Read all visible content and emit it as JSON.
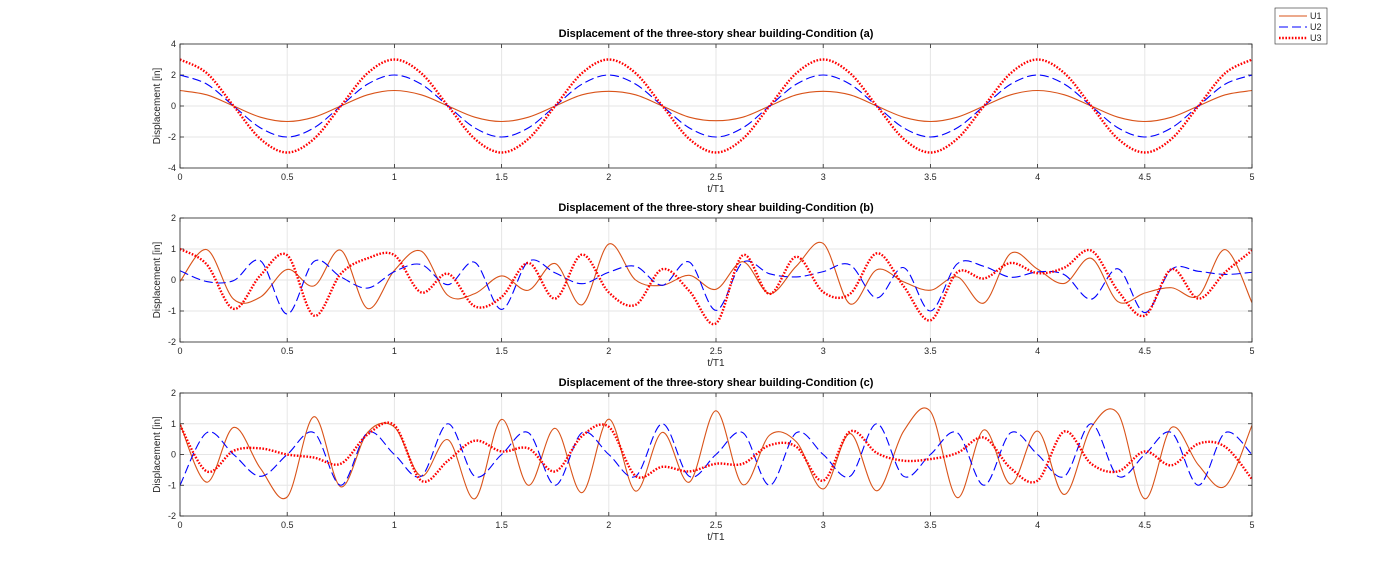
{
  "chart_data": [
    {
      "type": "line",
      "title": "Displacement of the three-story shear building-Condition (a)",
      "xlabel": "t/T1",
      "ylabel": "Displacement [in]",
      "xlim": [
        0,
        5
      ],
      "ylim": [
        -4,
        4
      ],
      "xticks": [
        "0",
        "0.5",
        "1",
        "1.5",
        "2",
        "2.5",
        "3",
        "3.5",
        "4",
        "4.5",
        "5"
      ],
      "yticks": [
        "-4",
        "-2",
        "0",
        "2",
        "4"
      ],
      "grid": true,
      "series": [
        {
          "name": "U1",
          "color": "#D95319",
          "style": "solid",
          "x": [
            0,
            0.125,
            0.25,
            0.375,
            0.5,
            0.625,
            0.75,
            0.875,
            1,
            1.125,
            1.25,
            1.375,
            1.5,
            1.625,
            1.75,
            1.875,
            2,
            2.125,
            2.25,
            2.375,
            2.5,
            2.625,
            2.75,
            2.875,
            3,
            3.125,
            3.25,
            3.375,
            3.5,
            3.625,
            3.75,
            3.875,
            4,
            4.125,
            4.25,
            4.375,
            4.5,
            4.625,
            4.75,
            4.875,
            5
          ],
          "y": [
            1,
            0.72,
            0,
            -0.72,
            -1,
            -0.72,
            0,
            0.72,
            1,
            0.72,
            0,
            -0.72,
            -1,
            -0.72,
            0,
            0.72,
            0.95,
            0.72,
            0,
            -0.72,
            -0.95,
            -0.72,
            0,
            0.72,
            0.95,
            0.72,
            0,
            -0.72,
            -1,
            -0.72,
            0,
            0.72,
            1,
            0.72,
            0,
            -0.72,
            -1,
            -0.72,
            0,
            0.72,
            1
          ]
        },
        {
          "name": "U2",
          "color": "#0000FF",
          "style": "dashed",
          "x": [
            0,
            0.125,
            0.25,
            0.375,
            0.5,
            0.625,
            0.75,
            0.875,
            1,
            1.125,
            1.25,
            1.375,
            1.5,
            1.625,
            1.75,
            1.875,
            2,
            2.125,
            2.25,
            2.375,
            2.5,
            2.625,
            2.75,
            2.875,
            3,
            3.125,
            3.25,
            3.375,
            3.5,
            3.625,
            3.75,
            3.875,
            4,
            4.125,
            4.25,
            4.375,
            4.5,
            4.625,
            4.75,
            4.875,
            5
          ],
          "y": [
            2,
            1.41,
            0,
            -1.41,
            -2,
            -1.41,
            0,
            1.41,
            2,
            1.41,
            0,
            -1.41,
            -2,
            -1.41,
            0,
            1.41,
            2,
            1.41,
            0,
            -1.41,
            -2,
            -1.41,
            0,
            1.41,
            2,
            1.41,
            0,
            -1.41,
            -2,
            -1.41,
            0,
            1.41,
            2,
            1.41,
            0,
            -1.41,
            -2,
            -1.41,
            0,
            1.41,
            2
          ]
        },
        {
          "name": "U3",
          "color": "#FF0000",
          "style": "dotted",
          "x": [
            0,
            0.125,
            0.25,
            0.375,
            0.5,
            0.625,
            0.75,
            0.875,
            1,
            1.125,
            1.25,
            1.375,
            1.5,
            1.625,
            1.75,
            1.875,
            2,
            2.125,
            2.25,
            2.375,
            2.5,
            2.625,
            2.75,
            2.875,
            3,
            3.125,
            3.25,
            3.375,
            3.5,
            3.625,
            3.75,
            3.875,
            4,
            4.125,
            4.25,
            4.375,
            4.5,
            4.625,
            4.75,
            4.875,
            5
          ],
          "y": [
            3,
            2.12,
            0,
            -2.12,
            -3,
            -2.12,
            0,
            2.12,
            3,
            2.12,
            0,
            -2.12,
            -3,
            -2.12,
            0,
            2.12,
            3,
            2.12,
            0,
            -2.12,
            -3,
            -2.12,
            0,
            2.12,
            3,
            2.12,
            0,
            -2.12,
            -3,
            -2.12,
            0,
            2.12,
            3,
            2.12,
            0,
            -2.12,
            -3,
            -2.12,
            0,
            2.12,
            3
          ]
        }
      ]
    },
    {
      "type": "line",
      "title": "Displacement of the three-story shear building-Condition (b)",
      "xlabel": "t/T1",
      "ylabel": "Displacement [in]",
      "xlim": [
        0,
        5
      ],
      "ylim": [
        -2,
        2
      ],
      "xticks": [
        "0",
        "0.5",
        "1",
        "1.5",
        "2",
        "2.5",
        "3",
        "3.5",
        "4",
        "4.5",
        "5"
      ],
      "yticks": [
        "-2",
        "-1",
        "0",
        "1",
        "2"
      ],
      "grid": true,
      "series": [
        {
          "name": "U1",
          "color": "#D95319",
          "style": "solid",
          "x": [
            0,
            0.125,
            0.25,
            0.375,
            0.5,
            0.625,
            0.75,
            0.875,
            1,
            1.125,
            1.25,
            1.375,
            1.5,
            1.625,
            1.75,
            1.875,
            2,
            2.125,
            2.25,
            2.375,
            2.5,
            2.625,
            2.75,
            2.875,
            3,
            3.125,
            3.25,
            3.375,
            3.5,
            3.625,
            3.75,
            3.875,
            4,
            4.125,
            4.25,
            4.375,
            4.5,
            4.625,
            4.75,
            4.875,
            5
          ],
          "y": [
            -0.05,
            0.98,
            -0.62,
            -0.55,
            0.34,
            -0.19,
            0.96,
            -0.92,
            0.31,
            0.93,
            -0.5,
            -0.44,
            0.13,
            -0.33,
            0.53,
            -0.8,
            1.16,
            0.0,
            -0.17,
            0.15,
            -0.3,
            0.59,
            -0.44,
            0.45,
            1.18,
            -0.77,
            0.33,
            -0.06,
            -0.33,
            0.1,
            -0.74,
            0.86,
            0.35,
            -0.11,
            0.7,
            -0.7,
            -0.42,
            -0.25,
            -0.51,
            0.98,
            -0.73
          ]
        },
        {
          "name": "U2",
          "color": "#0000FF",
          "style": "dashed",
          "x": [
            0,
            0.125,
            0.25,
            0.375,
            0.5,
            0.625,
            0.75,
            0.875,
            1,
            1.125,
            1.25,
            1.375,
            1.5,
            1.625,
            1.75,
            1.875,
            2,
            2.125,
            2.25,
            2.375,
            2.5,
            2.625,
            2.75,
            2.875,
            3,
            3.125,
            3.25,
            3.375,
            3.5,
            3.625,
            3.75,
            3.875,
            4,
            4.125,
            4.25,
            4.375,
            4.5,
            4.625,
            4.75,
            4.875,
            5
          ],
          "y": [
            0.3,
            -0.05,
            -0.02,
            0.62,
            -1.1,
            0.6,
            0.1,
            -0.26,
            0.27,
            0.5,
            -0.15,
            0.57,
            -0.95,
            0.6,
            0.23,
            -0.12,
            0.25,
            0.44,
            -0.17,
            0.58,
            -0.98,
            0.57,
            0.2,
            0.1,
            0.27,
            0.49,
            -0.58,
            0.4,
            -1.0,
            0.52,
            0.44,
            0.09,
            0.26,
            0.17,
            -0.62,
            0.36,
            -1.05,
            0.35,
            0.28,
            0.18,
            0.25
          ]
        },
        {
          "name": "U3",
          "color": "#FF0000",
          "style": "dotted",
          "x": [
            0,
            0.125,
            0.25,
            0.375,
            0.5,
            0.625,
            0.75,
            0.875,
            1,
            1.125,
            1.25,
            1.375,
            1.5,
            1.625,
            1.75,
            1.875,
            2,
            2.125,
            2.25,
            2.375,
            2.5,
            2.625,
            2.75,
            2.875,
            3,
            3.125,
            3.25,
            3.375,
            3.5,
            3.625,
            3.75,
            3.875,
            4,
            4.125,
            4.25,
            4.375,
            4.5,
            4.625,
            4.75,
            4.875,
            5
          ],
          "y": [
            1.0,
            0.5,
            -0.93,
            0.15,
            0.8,
            -1.15,
            0.2,
            0.7,
            0.8,
            -0.4,
            0.2,
            -0.85,
            -0.55,
            0.55,
            -0.6,
            0.82,
            -0.4,
            -0.8,
            0.35,
            -0.35,
            -1.4,
            0.8,
            -0.45,
            0.75,
            -0.39,
            -0.45,
            0.86,
            -0.2,
            -1.3,
            0.25,
            0.05,
            0.55,
            0.22,
            0.4,
            0.95,
            -0.35,
            -1.15,
            0.35,
            -0.6,
            0.25,
            0.95
          ]
        }
      ]
    },
    {
      "type": "line",
      "title": "Displacement of the three-story shear building-Condition (c)",
      "xlabel": "t/T1",
      "ylabel": "Displacement [in]",
      "xlim": [
        0,
        5
      ],
      "ylim": [
        -2,
        2
      ],
      "xticks": [
        "0",
        "0.5",
        "1",
        "1.5",
        "2",
        "2.5",
        "3",
        "3.5",
        "4",
        "4.5",
        "5"
      ],
      "yticks": [
        "-2",
        "-1",
        "0",
        "1",
        "2"
      ],
      "grid": true,
      "series": [
        {
          "name": "U1",
          "color": "#D95319",
          "style": "solid",
          "x": [
            0,
            0.125,
            0.25,
            0.375,
            0.5,
            0.625,
            0.75,
            0.875,
            1,
            1.125,
            1.25,
            1.375,
            1.5,
            1.625,
            1.75,
            1.875,
            2,
            2.125,
            2.25,
            2.375,
            2.5,
            2.625,
            2.75,
            2.875,
            3,
            3.125,
            3.25,
            3.375,
            3.5,
            3.625,
            3.75,
            3.875,
            4,
            4.125,
            4.25,
            4.375,
            4.5,
            4.625,
            4.75,
            4.875,
            5
          ],
          "y": [
            1.0,
            -0.9,
            0.88,
            -0.45,
            -1.38,
            1.23,
            -1.05,
            0.72,
            0.89,
            -0.7,
            0.48,
            -1.44,
            1.14,
            -1.0,
            0.85,
            -1.24,
            1.15,
            -1.19,
            0.72,
            -0.9,
            1.42,
            -0.98,
            0.63,
            0.41,
            -1.12,
            0.68,
            -1.18,
            0.76,
            1.4,
            -1.4,
            0.8,
            -0.96,
            0.76,
            -1.3,
            0.88,
            1.33,
            -1.44,
            0.88,
            -0.34,
            -1.03,
            0.95
          ]
        },
        {
          "name": "U2",
          "color": "#0000FF",
          "style": "dashed",
          "x": [
            0,
            0.125,
            0.25,
            0.375,
            0.5,
            0.625,
            0.75,
            0.875,
            1,
            1.125,
            1.25,
            1.375,
            1.5,
            1.625,
            1.75,
            1.875,
            2,
            2.125,
            2.25,
            2.375,
            2.5,
            2.625,
            2.75,
            2.875,
            3,
            3.125,
            3.25,
            3.375,
            3.5,
            3.625,
            3.75,
            3.875,
            4,
            4.125,
            4.25,
            4.375,
            4.5,
            4.625,
            4.75,
            4.875,
            5
          ],
          "y": [
            -1.0,
            0.71,
            0.0,
            -0.71,
            0.0,
            0.71,
            -1.0,
            0.71,
            0.0,
            -0.71,
            1.0,
            -0.71,
            0.0,
            0.71,
            -1.0,
            0.71,
            0.0,
            -0.71,
            1.0,
            -0.71,
            0.0,
            0.71,
            -1.0,
            0.71,
            0.0,
            -0.71,
            1.0,
            -0.71,
            0.0,
            0.71,
            -1.0,
            0.71,
            0.0,
            -0.71,
            1.0,
            -0.71,
            0.0,
            0.71,
            -1.0,
            0.71,
            0.0
          ]
        },
        {
          "name": "U3",
          "color": "#FF0000",
          "style": "dotted",
          "x": [
            0,
            0.125,
            0.25,
            0.375,
            0.5,
            0.625,
            0.75,
            0.875,
            1,
            1.125,
            1.25,
            1.375,
            1.5,
            1.625,
            1.75,
            1.875,
            2,
            2.125,
            2.25,
            2.375,
            2.5,
            2.625,
            2.75,
            2.875,
            3,
            3.125,
            3.25,
            3.375,
            3.5,
            3.625,
            3.75,
            3.875,
            4,
            4.125,
            4.25,
            4.375,
            4.5,
            4.625,
            4.75,
            4.875,
            5
          ],
          "y": [
            0.95,
            -0.55,
            0.12,
            0.2,
            0.0,
            -0.1,
            -0.3,
            0.65,
            0.95,
            -0.85,
            -0.2,
            0.45,
            0.1,
            0.2,
            -0.55,
            0.6,
            0.9,
            -0.7,
            -0.4,
            -0.55,
            -0.3,
            -0.3,
            0.3,
            0.25,
            -0.85,
            0.75,
            0.05,
            -0.2,
            -0.15,
            0.05,
            0.55,
            -0.45,
            -0.85,
            0.75,
            -0.3,
            -0.55,
            0.1,
            -0.35,
            0.35,
            0.25,
            -0.8
          ]
        }
      ]
    }
  ],
  "legend": {
    "location": "top-right",
    "entries": [
      {
        "name": "U1",
        "color": "#D95319",
        "style": "solid"
      },
      {
        "name": "U2",
        "color": "#0000FF",
        "style": "dashed"
      },
      {
        "name": "U3",
        "color": "#FF0000",
        "style": "dotted"
      }
    ]
  }
}
